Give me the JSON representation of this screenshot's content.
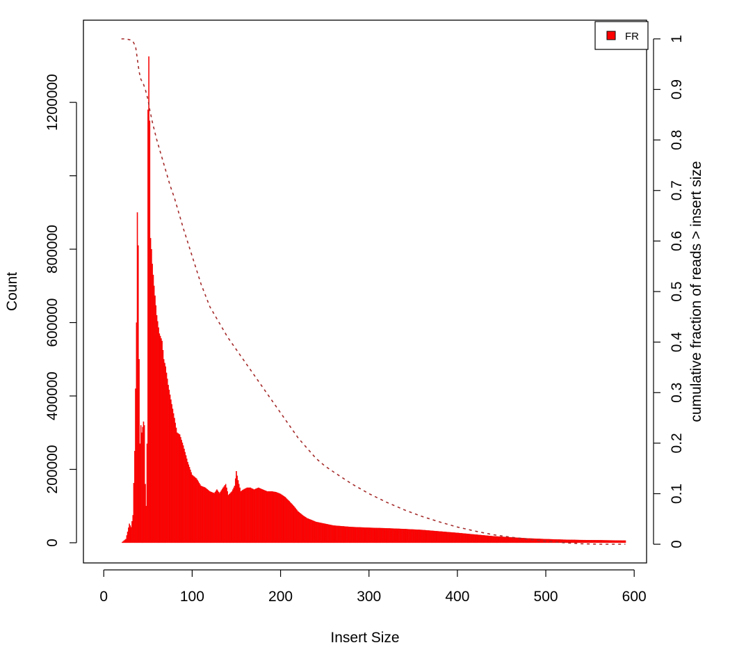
{
  "chart_data": {
    "type": "bar",
    "title": "",
    "xlabel": "Insert Size",
    "ylabel": "Count",
    "y2label": "cumulative fraction of reads > insert size",
    "xlim": [
      -23,
      614
    ],
    "ylim": [
      -55000,
      1424000
    ],
    "y2lim": [
      -0.037,
      1.037
    ],
    "x_ticks": [
      "0",
      "100",
      "200",
      "300",
      "400",
      "500",
      "600"
    ],
    "y_ticks": [
      "0",
      "200000",
      "400000",
      "600000",
      "800000",
      "1000000",
      "1200000"
    ],
    "y_ticks_labeled": [
      true,
      true,
      true,
      true,
      true,
      false,
      true
    ],
    "y2_ticks": [
      "0",
      "0.1",
      "0.2",
      "0.3",
      "0.4",
      "0.5",
      "0.6",
      "0.7",
      "0.8",
      "0.9",
      "1"
    ],
    "grid": false,
    "legend_position": "top-right",
    "series": [
      {
        "name": "FR",
        "kind": "histogram",
        "color": "#ff0000",
        "points": [
          [
            20,
            0
          ],
          [
            25,
            10000
          ],
          [
            27,
            30000
          ],
          [
            29,
            52000
          ],
          [
            31,
            42000
          ],
          [
            33,
            75000
          ],
          [
            35,
            250000
          ],
          [
            36,
            420000
          ],
          [
            37,
            600000
          ],
          [
            38,
            900000
          ],
          [
            39,
            810000
          ],
          [
            40,
            500000
          ],
          [
            41,
            270000
          ],
          [
            42,
            320000
          ],
          [
            43,
            300000
          ],
          [
            45,
            330000
          ],
          [
            46,
            320000
          ],
          [
            47,
            160000
          ],
          [
            48,
            100000
          ],
          [
            49,
            270000
          ],
          [
            50,
            1180000
          ],
          [
            51,
            1325000
          ],
          [
            52,
            1150000
          ],
          [
            53,
            830000
          ],
          [
            54,
            800000
          ],
          [
            55,
            760000
          ],
          [
            57,
            700000
          ],
          [
            60,
            620000
          ],
          [
            63,
            570000
          ],
          [
            66,
            550000
          ],
          [
            68,
            500000
          ],
          [
            70,
            480000
          ],
          [
            73,
            430000
          ],
          [
            76,
            390000
          ],
          [
            80,
            340000
          ],
          [
            83,
            300000
          ],
          [
            86,
            295000
          ],
          [
            90,
            265000
          ],
          [
            95,
            220000
          ],
          [
            100,
            185000
          ],
          [
            105,
            175000
          ],
          [
            110,
            155000
          ],
          [
            115,
            150000
          ],
          [
            120,
            140000
          ],
          [
            125,
            135000
          ],
          [
            128,
            145000
          ],
          [
            131,
            135000
          ],
          [
            135,
            150000
          ],
          [
            138,
            160000
          ],
          [
            141,
            130000
          ],
          [
            145,
            140000
          ],
          [
            148,
            155000
          ],
          [
            150,
            195000
          ],
          [
            152,
            170000
          ],
          [
            155,
            140000
          ],
          [
            158,
            145000
          ],
          [
            162,
            150000
          ],
          [
            166,
            150000
          ],
          [
            170,
            145000
          ],
          [
            175,
            150000
          ],
          [
            180,
            145000
          ],
          [
            185,
            140000
          ],
          [
            190,
            140000
          ],
          [
            195,
            138000
          ],
          [
            200,
            133000
          ],
          [
            205,
            125000
          ],
          [
            210,
            113000
          ],
          [
            215,
            100000
          ],
          [
            220,
            85000
          ],
          [
            225,
            75000
          ],
          [
            230,
            67000
          ],
          [
            240,
            57000
          ],
          [
            250,
            52000
          ],
          [
            260,
            47000
          ],
          [
            270,
            45000
          ],
          [
            280,
            43000
          ],
          [
            290,
            42000
          ],
          [
            300,
            41000
          ],
          [
            320,
            39500
          ],
          [
            340,
            37500
          ],
          [
            360,
            35000
          ],
          [
            380,
            31000
          ],
          [
            400,
            27000
          ],
          [
            420,
            22500
          ],
          [
            440,
            18000
          ],
          [
            460,
            15000
          ],
          [
            480,
            12000
          ],
          [
            500,
            10000
          ],
          [
            520,
            8500
          ],
          [
            540,
            7500
          ],
          [
            560,
            7000
          ],
          [
            575,
            6500
          ],
          [
            590,
            6000
          ]
        ]
      },
      {
        "name": "",
        "kind": "cumulative",
        "axis": "right",
        "color": "#a52a2a",
        "points": [
          [
            20,
            1.0
          ],
          [
            25,
            1.0
          ],
          [
            30,
            0.998
          ],
          [
            33,
            0.995
          ],
          [
            36,
            0.985
          ],
          [
            38,
            0.96
          ],
          [
            40,
            0.935
          ],
          [
            42,
            0.92
          ],
          [
            45,
            0.91
          ],
          [
            47,
            0.9
          ],
          [
            50,
            0.88
          ],
          [
            52,
            0.86
          ],
          [
            55,
            0.835
          ],
          [
            60,
            0.8
          ],
          [
            65,
            0.77
          ],
          [
            70,
            0.74
          ],
          [
            75,
            0.71
          ],
          [
            80,
            0.685
          ],
          [
            85,
            0.655
          ],
          [
            90,
            0.625
          ],
          [
            100,
            0.57
          ],
          [
            110,
            0.515
          ],
          [
            120,
            0.47
          ],
          [
            130,
            0.44
          ],
          [
            140,
            0.41
          ],
          [
            150,
            0.385
          ],
          [
            160,
            0.36
          ],
          [
            170,
            0.335
          ],
          [
            180,
            0.31
          ],
          [
            190,
            0.285
          ],
          [
            200,
            0.26
          ],
          [
            210,
            0.235
          ],
          [
            220,
            0.21
          ],
          [
            230,
            0.19
          ],
          [
            240,
            0.17
          ],
          [
            250,
            0.155
          ],
          [
            260,
            0.143
          ],
          [
            280,
            0.12
          ],
          [
            300,
            0.1
          ],
          [
            320,
            0.083
          ],
          [
            340,
            0.068
          ],
          [
            360,
            0.055
          ],
          [
            380,
            0.044
          ],
          [
            400,
            0.034
          ],
          [
            420,
            0.026
          ],
          [
            440,
            0.019
          ],
          [
            460,
            0.014
          ],
          [
            480,
            0.01
          ],
          [
            500,
            0.006
          ],
          [
            520,
            0.003
          ],
          [
            540,
            0.001
          ],
          [
            560,
            0.0
          ],
          [
            590,
            0.0
          ]
        ]
      }
    ]
  }
}
